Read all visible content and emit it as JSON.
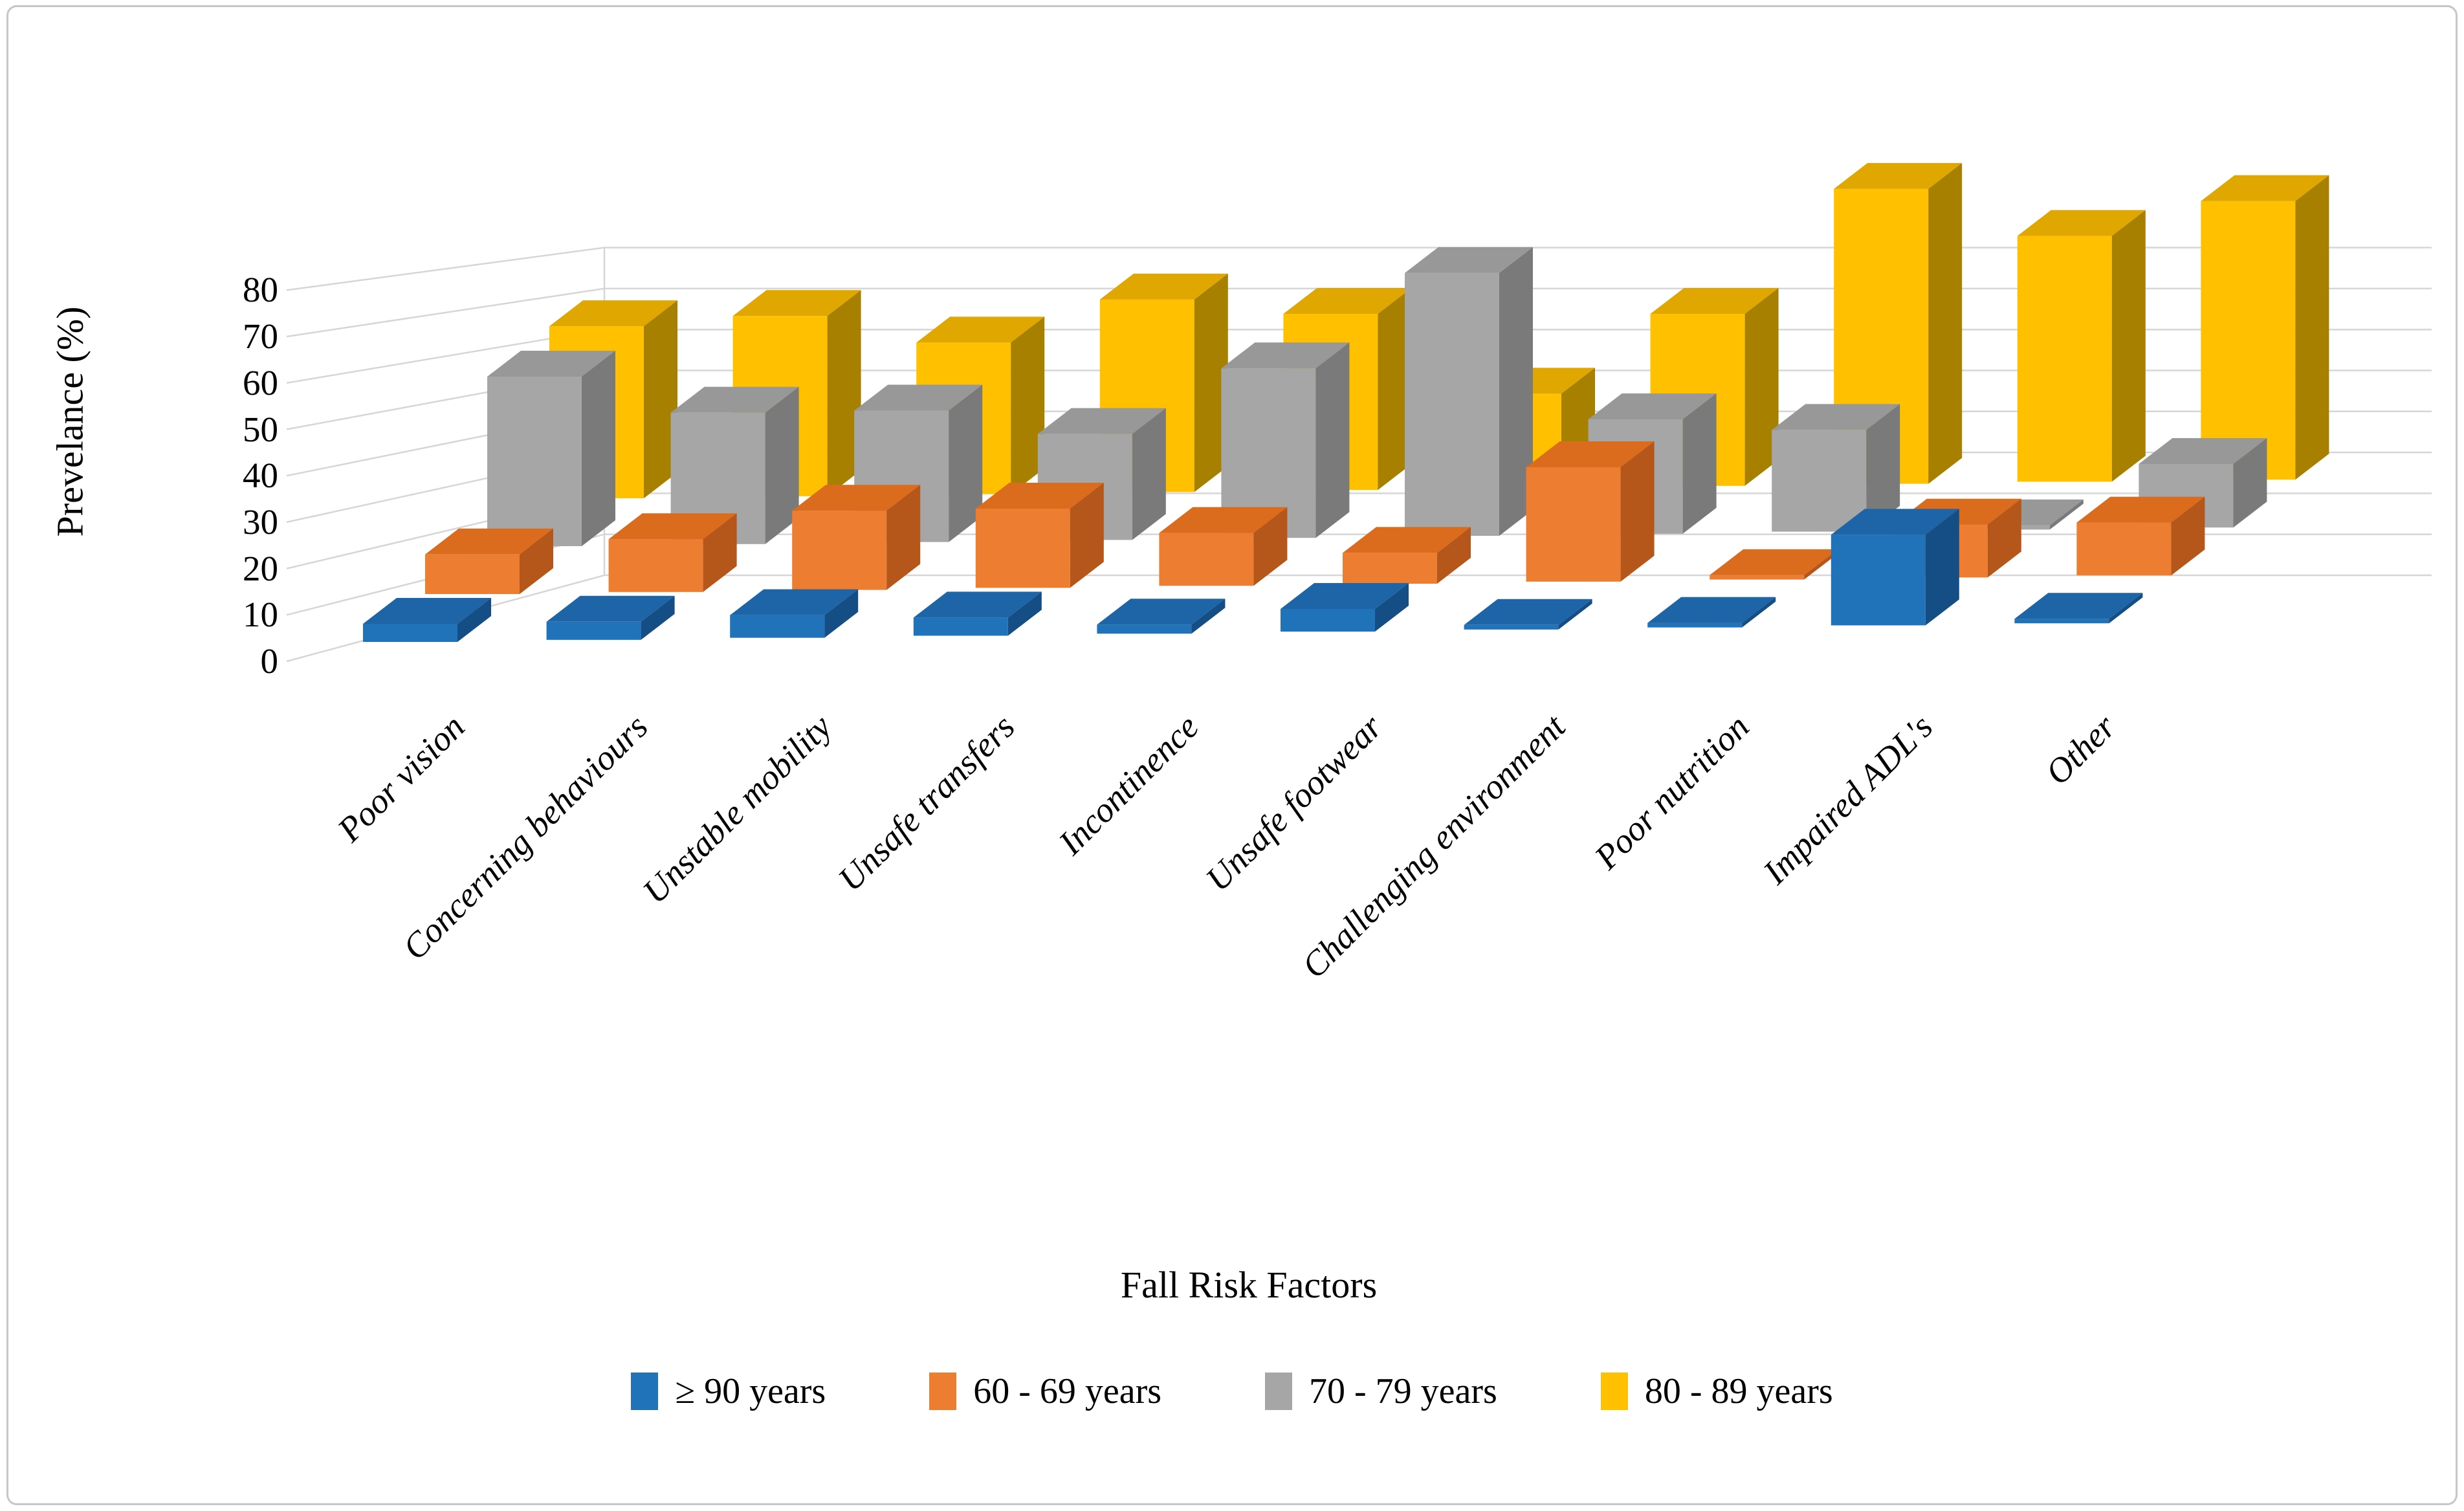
{
  "figure": {
    "y_axis_title": "Prevelance (%)",
    "x_axis_title": "Fall Risk Factors"
  },
  "chart_data": {
    "type": "bar",
    "subtype": "3d-clustered-column",
    "title": "",
    "xlabel": "Fall Risk Factors",
    "ylabel": "Prevelance (%)",
    "ylim": [
      0,
      80
    ],
    "yticks": [
      0,
      10,
      20,
      30,
      40,
      50,
      60,
      70,
      80
    ],
    "grid": true,
    "legend_position": "bottom",
    "categories": [
      "Poor vision",
      "Concerning behaviours",
      "Unstable mobility",
      "Unsafe transfers",
      "Incontinence",
      "Unsafe footwear",
      "Challenging environment",
      "Poor nutrition",
      "Impaired ADL's",
      "Other"
    ],
    "series": [
      {
        "name": "≥ 90 years",
        "color": "#2173b9",
        "top_color": "#1d65a7",
        "side_color": "#154e84",
        "values": [
          4,
          4,
          5,
          4,
          2,
          5,
          1,
          1,
          20,
          1
        ]
      },
      {
        "name": "60 - 69 years",
        "color": "#ed7d31",
        "top_color": "#db6c1e",
        "side_color": "#b5571a",
        "values": [
          9,
          12,
          18,
          18,
          12,
          7,
          26,
          1,
          12,
          12
        ]
      },
      {
        "name": "70 - 79 years",
        "color": "#a6a6a6",
        "top_color": "#989898",
        "side_color": "#7a7a7a",
        "values": [
          40,
          31,
          31,
          25,
          40,
          62,
          27,
          24,
          1,
          15
        ]
      },
      {
        "name": "80 - 89 years",
        "color": "#ffc000",
        "top_color": "#dfa700",
        "side_color": "#a88000",
        "values": [
          42,
          44,
          37,
          47,
          43,
          23,
          42,
          72,
          60,
          68
        ]
      }
    ],
    "wall_color": "#d6d6d6"
  }
}
